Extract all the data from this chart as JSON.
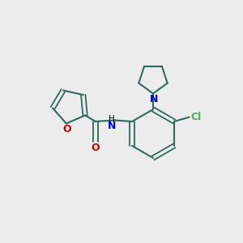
{
  "background_color": "#ececec",
  "bond_color": "#2d6b5e",
  "o_color": "#cc0000",
  "n_color": "#0000cc",
  "cl_color": "#4caf50",
  "text_color": "#000000",
  "fig_width": 3.0,
  "fig_height": 3.0,
  "dpi": 100,
  "xlim": [
    0,
    10
  ],
  "ylim": [
    0,
    10
  ]
}
